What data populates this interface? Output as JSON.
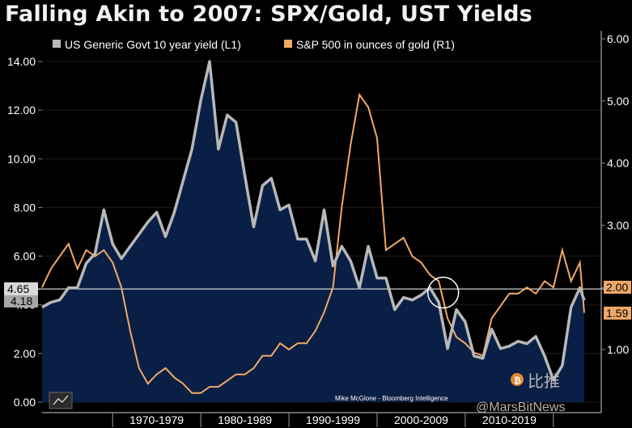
{
  "title": "Falling Akin to 2007: SPX/Gold, UST Yields",
  "legend": [
    {
      "label": "US Generic Govt 10 year yield (L1)",
      "color": "#b8b8b8"
    },
    {
      "label": "S&P 500 in ounces of gold (R1)",
      "color": "#f0a868"
    }
  ],
  "credit": "Mike McGlone - Bloomberg Intelligence",
  "watermark": {
    "cn": "比推",
    "en": "@MarsBitNews"
  },
  "chart_data": {
    "type": "line",
    "title": "Falling Akin to 2007: SPX/Gold, UST Yields",
    "x_range": [
      1962,
      2023.5
    ],
    "x_category_labels": [
      "1970-1979",
      "1980-1989",
      "1990-1999",
      "2000-2009",
      "2010-2019"
    ],
    "y_left": {
      "range": [
        0,
        14
      ],
      "ticks": [
        "0.00",
        "2.00",
        "4.00",
        "6.00",
        "8.00",
        "10.00",
        "12.00",
        "14.00"
      ]
    },
    "y_right": {
      "range": [
        0.2,
        6
      ],
      "ticks": [
        "1.00",
        "2.00",
        "3.00",
        "4.00",
        "5.00",
        "6.00"
      ]
    },
    "current_values": {
      "left": "4.65",
      "left_second": "4.18",
      "right": "2.00",
      "right_second": "1.59"
    },
    "reference_line": {
      "axis": "left",
      "value": 4.65
    },
    "highlight_circle": {
      "x": 2007.5,
      "y": 4.5
    },
    "series": [
      {
        "name": "US Generic Govt 10 year yield (L1)",
        "axis": "left",
        "color": "#b8b8b8",
        "fill": "#0a1f45",
        "points": [
          [
            1962,
            3.9
          ],
          [
            1963,
            4.1
          ],
          [
            1964,
            4.2
          ],
          [
            1965,
            4.7
          ],
          [
            1966,
            4.7
          ],
          [
            1967,
            5.7
          ],
          [
            1968,
            6.1
          ],
          [
            1969,
            7.9
          ],
          [
            1970,
            6.5
          ],
          [
            1971,
            5.9
          ],
          [
            1972,
            6.4
          ],
          [
            1973,
            6.9
          ],
          [
            1974,
            7.4
          ],
          [
            1975,
            7.8
          ],
          [
            1976,
            6.8
          ],
          [
            1977,
            7.8
          ],
          [
            1978,
            9.1
          ],
          [
            1979,
            10.4
          ],
          [
            1980,
            12.4
          ],
          [
            1981,
            14.0
          ],
          [
            1982,
            10.4
          ],
          [
            1983,
            11.8
          ],
          [
            1984,
            11.5
          ],
          [
            1985,
            9.3
          ],
          [
            1986,
            7.2
          ],
          [
            1987,
            8.9
          ],
          [
            1988,
            9.2
          ],
          [
            1989,
            7.9
          ],
          [
            1990,
            8.1
          ],
          [
            1991,
            6.7
          ],
          [
            1992,
            6.7
          ],
          [
            1993,
            5.8
          ],
          [
            1994,
            7.9
          ],
          [
            1995,
            5.6
          ],
          [
            1996,
            6.4
          ],
          [
            1997,
            5.8
          ],
          [
            1998,
            4.7
          ],
          [
            1999,
            6.4
          ],
          [
            2000,
            5.1
          ],
          [
            2001,
            5.1
          ],
          [
            2002,
            3.8
          ],
          [
            2003,
            4.3
          ],
          [
            2004,
            4.2
          ],
          [
            2005,
            4.4
          ],
          [
            2006,
            4.7
          ],
          [
            2007,
            4.1
          ],
          [
            2008,
            2.2
          ],
          [
            2009,
            3.8
          ],
          [
            2010,
            3.3
          ],
          [
            2011,
            1.9
          ],
          [
            2012,
            1.8
          ],
          [
            2013,
            3.0
          ],
          [
            2014,
            2.2
          ],
          [
            2015,
            2.3
          ],
          [
            2016,
            2.5
          ],
          [
            2017,
            2.4
          ],
          [
            2018,
            2.7
          ],
          [
            2019,
            1.9
          ],
          [
            2020,
            0.9
          ],
          [
            2021,
            1.5
          ],
          [
            2022,
            3.9
          ],
          [
            2023,
            4.7
          ],
          [
            2023.5,
            4.18
          ]
        ]
      },
      {
        "name": "S&P 500 in ounces of gold (R1)",
        "axis": "right",
        "color": "#f0a868",
        "points": [
          [
            1962,
            2.0
          ],
          [
            1963,
            2.3
          ],
          [
            1964,
            2.5
          ],
          [
            1965,
            2.7
          ],
          [
            1966,
            2.3
          ],
          [
            1967,
            2.6
          ],
          [
            1968,
            2.5
          ],
          [
            1969,
            2.6
          ],
          [
            1970,
            2.4
          ],
          [
            1971,
            2.0
          ],
          [
            1972,
            1.3
          ],
          [
            1973,
            0.7
          ],
          [
            1974,
            0.45
          ],
          [
            1975,
            0.6
          ],
          [
            1976,
            0.7
          ],
          [
            1977,
            0.55
          ],
          [
            1978,
            0.45
          ],
          [
            1979,
            0.3
          ],
          [
            1980,
            0.3
          ],
          [
            1981,
            0.4
          ],
          [
            1982,
            0.4
          ],
          [
            1983,
            0.5
          ],
          [
            1984,
            0.6
          ],
          [
            1985,
            0.6
          ],
          [
            1986,
            0.7
          ],
          [
            1987,
            0.9
          ],
          [
            1988,
            0.9
          ],
          [
            1989,
            1.1
          ],
          [
            1990,
            1.0
          ],
          [
            1991,
            1.1
          ],
          [
            1992,
            1.1
          ],
          [
            1993,
            1.3
          ],
          [
            1994,
            1.6
          ],
          [
            1995,
            2.0
          ],
          [
            1996,
            3.3
          ],
          [
            1997,
            4.3
          ],
          [
            1998,
            5.1
          ],
          [
            1999,
            4.9
          ],
          [
            2000,
            4.4
          ],
          [
            2001,
            2.6
          ],
          [
            2002,
            2.7
          ],
          [
            2003,
            2.8
          ],
          [
            2004,
            2.5
          ],
          [
            2005,
            2.4
          ],
          [
            2006,
            2.2
          ],
          [
            2007,
            2.1
          ],
          [
            2008,
            1.5
          ],
          [
            2009,
            1.2
          ],
          [
            2010,
            1.1
          ],
          [
            2011,
            0.95
          ],
          [
            2012,
            0.9
          ],
          [
            2013,
            1.5
          ],
          [
            2014,
            1.7
          ],
          [
            2015,
            1.9
          ],
          [
            2016,
            1.9
          ],
          [
            2017,
            2.0
          ],
          [
            2018,
            1.9
          ],
          [
            2019,
            2.1
          ],
          [
            2020,
            2.0
          ],
          [
            2021,
            2.6
          ],
          [
            2022,
            2.1
          ],
          [
            2023,
            2.4
          ],
          [
            2023.5,
            1.59
          ]
        ]
      }
    ]
  }
}
